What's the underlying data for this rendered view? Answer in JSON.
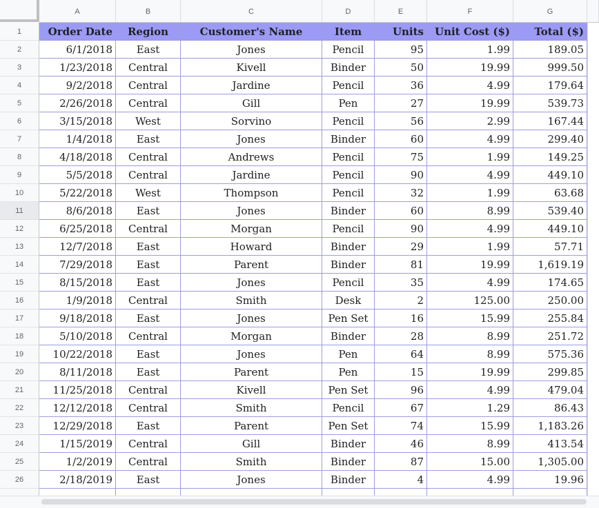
{
  "sheet": {
    "columns": [
      "A",
      "B",
      "C",
      "D",
      "E",
      "F",
      "G"
    ],
    "header": [
      "Order Date",
      "Region",
      "Customer's Name",
      "Item",
      "Units",
      "Unit Cost ($)",
      "Total ($)"
    ],
    "rows": [
      [
        "6/1/2018",
        "East",
        "Jones",
        "Pencil",
        "95",
        "1.99",
        "189.05"
      ],
      [
        "1/23/2018",
        "Central",
        "Kivell",
        "Binder",
        "50",
        "19.99",
        "999.50"
      ],
      [
        "9/2/2018",
        "Central",
        "Jardine",
        "Pencil",
        "36",
        "4.99",
        "179.64"
      ],
      [
        "2/26/2018",
        "Central",
        "Gill",
        "Pen",
        "27",
        "19.99",
        "539.73"
      ],
      [
        "3/15/2018",
        "West",
        "Sorvino",
        "Pencil",
        "56",
        "2.99",
        "167.44"
      ],
      [
        "1/4/2018",
        "East",
        "Jones",
        "Binder",
        "60",
        "4.99",
        "299.40"
      ],
      [
        "4/18/2018",
        "Central",
        "Andrews",
        "Pencil",
        "75",
        "1.99",
        "149.25"
      ],
      [
        "5/5/2018",
        "Central",
        "Jardine",
        "Pencil",
        "90",
        "4.99",
        "449.10"
      ],
      [
        "5/22/2018",
        "West",
        "Thompson",
        "Pencil",
        "32",
        "1.99",
        "63.68"
      ],
      [
        "8/6/2018",
        "East",
        "Jones",
        "Binder",
        "60",
        "8.99",
        "539.40"
      ],
      [
        "6/25/2018",
        "Central",
        "Morgan",
        "Pencil",
        "90",
        "4.99",
        "449.10"
      ],
      [
        "12/7/2018",
        "East",
        "Howard",
        "Binder",
        "29",
        "1.99",
        "57.71"
      ],
      [
        "7/29/2018",
        "East",
        "Parent",
        "Binder",
        "81",
        "19.99",
        "1,619.19"
      ],
      [
        "8/15/2018",
        "East",
        "Jones",
        "Pencil",
        "35",
        "4.99",
        "174.65"
      ],
      [
        "1/9/2018",
        "Central",
        "Smith",
        "Desk",
        "2",
        "125.00",
        "250.00"
      ],
      [
        "9/18/2018",
        "East",
        "Jones",
        "Pen Set",
        "16",
        "15.99",
        "255.84"
      ],
      [
        "5/10/2018",
        "Central",
        "Morgan",
        "Binder",
        "28",
        "8.99",
        "251.72"
      ],
      [
        "10/22/2018",
        "East",
        "Jones",
        "Pen",
        "64",
        "8.99",
        "575.36"
      ],
      [
        "8/11/2018",
        "East",
        "Parent",
        "Pen",
        "15",
        "19.99",
        "299.85"
      ],
      [
        "11/25/2018",
        "Central",
        "Kivell",
        "Pen Set",
        "96",
        "4.99",
        "479.04"
      ],
      [
        "12/12/2018",
        "Central",
        "Smith",
        "Pencil",
        "67",
        "1.29",
        "86.43"
      ],
      [
        "12/29/2018",
        "East",
        "Parent",
        "Pen Set",
        "74",
        "15.99",
        "1,183.26"
      ],
      [
        "1/15/2019",
        "Central",
        "Gill",
        "Binder",
        "46",
        "8.99",
        "413.54"
      ],
      [
        "1/2/2019",
        "Central",
        "Smith",
        "Binder",
        "87",
        "15.00",
        "1,305.00"
      ],
      [
        "2/18/2019",
        "East",
        "Jones",
        "Binder",
        "4",
        "4.99",
        "19.96"
      ]
    ],
    "row_numbers": [
      "1",
      "2",
      "3",
      "4",
      "5",
      "6",
      "7",
      "8",
      "9",
      "10",
      "11",
      "12",
      "13",
      "14",
      "15",
      "16",
      "17",
      "18",
      "19",
      "20",
      "21",
      "22",
      "23",
      "24",
      "25",
      "26"
    ],
    "active_row": "11",
    "colors": {
      "header_fill": "#9b9bf5",
      "cell_border": "#9e9be0"
    }
  }
}
